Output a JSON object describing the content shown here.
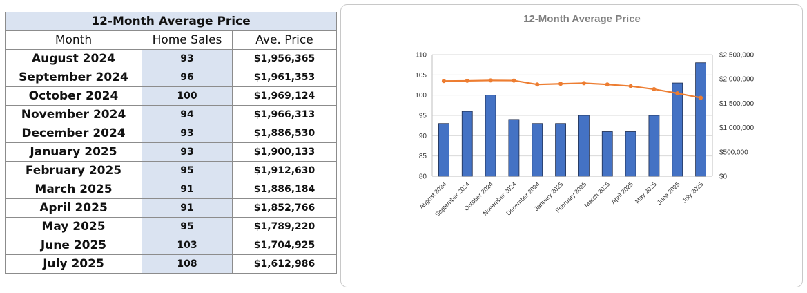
{
  "table": {
    "title": "12-Month Average Price",
    "headers": [
      "Month",
      "Home Sales",
      "Ave. Price"
    ],
    "rows": [
      {
        "month": "August 2024",
        "sales": "93",
        "price": "$1,956,365"
      },
      {
        "month": "September 2024",
        "sales": "96",
        "price": "$1,961,353"
      },
      {
        "month": "October 2024",
        "sales": "100",
        "price": "$1,969,124"
      },
      {
        "month": "November 2024",
        "sales": "94",
        "price": "$1,966,313"
      },
      {
        "month": "December 2024",
        "sales": "93",
        "price": "$1,886,530"
      },
      {
        "month": "January 2025",
        "sales": "93",
        "price": "$1,900,133"
      },
      {
        "month": "February 2025",
        "sales": "95",
        "price": "$1,912,630"
      },
      {
        "month": "March 2025",
        "sales": "91",
        "price": "$1,886,184"
      },
      {
        "month": "April 2025",
        "sales": "91",
        "price": "$1,852,766"
      },
      {
        "month": "May 2025",
        "sales": "95",
        "price": "$1,789,220"
      },
      {
        "month": "June 2025",
        "sales": "103",
        "price": "$1,704,925"
      },
      {
        "month": "July 2025",
        "sales": "108",
        "price": "$1,612,986"
      }
    ]
  },
  "chart_data": {
    "type": "bar",
    "title": "12-Month Average Price",
    "categories": [
      "August 2024",
      "September 2024",
      "October 2024",
      "November 2024",
      "December 2024",
      "January 2025",
      "February 2025",
      "March 2025",
      "April 2025",
      "May 2025",
      "June 2025",
      "July 2025"
    ],
    "series": [
      {
        "type": "bar",
        "axis": "left",
        "color": "#4472c4",
        "values": [
          93,
          96,
          100,
          94,
          93,
          93,
          95,
          91,
          91,
          95,
          103,
          108
        ]
      },
      {
        "type": "line",
        "axis": "right",
        "color": "#ed7d31",
        "values": [
          1956365,
          1961353,
          1969124,
          1966313,
          1886530,
          1900133,
          1912630,
          1886184,
          1852766,
          1789220,
          1704925,
          1612986
        ]
      }
    ],
    "y_left": {
      "min": 80,
      "max": 110,
      "step": 5,
      "tick_labels": [
        "80",
        "85",
        "90",
        "95",
        "100",
        "105",
        "110"
      ]
    },
    "y_right": {
      "min": 0,
      "max": 2500000,
      "step": 500000,
      "tick_labels": [
        "$0",
        "$500,000",
        "$1,000,000",
        "$1,500,000",
        "$2,000,000",
        "$2,500,000"
      ]
    },
    "grid": true,
    "legend": "none"
  }
}
